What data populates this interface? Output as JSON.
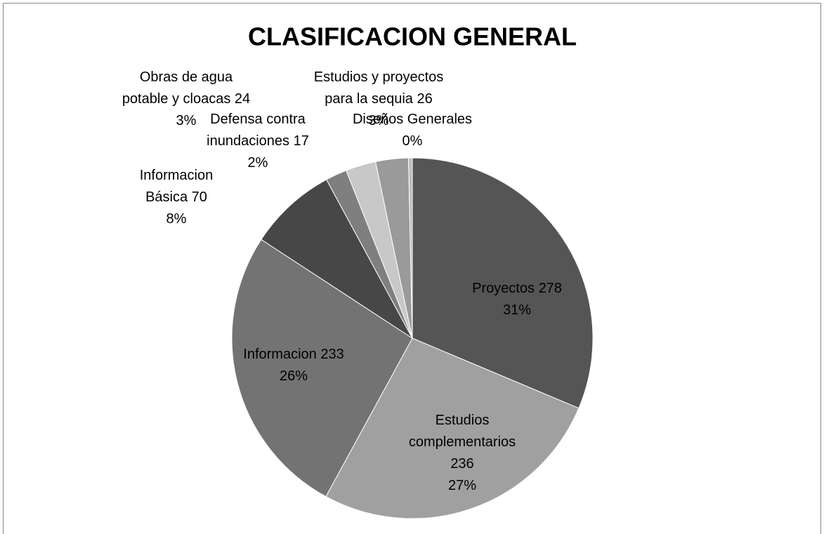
{
  "chart_data": {
    "type": "pie",
    "title": "CLASIFICACION GENERAL",
    "categories": [
      "Proyectos",
      "Estudios complementarios",
      "Informacion",
      "Informacion Básica",
      "Defensa contra inundaciones",
      "Obras de agua potable y cloacas",
      "Estudios y proyectos para la sequia",
      "Diseños Generales"
    ],
    "values": [
      278,
      236,
      233,
      70,
      17,
      24,
      26,
      3
    ],
    "percent_labels": [
      "31%",
      "27%",
      "26%",
      "8%",
      "2%",
      "3%",
      "3%",
      "0%"
    ],
    "printed_values": [
      true,
      true,
      true,
      true,
      true,
      true,
      true,
      false
    ],
    "colors": [
      "#555555",
      "#a0a0a0",
      "#737373",
      "#474747",
      "#7f7f7f",
      "#c8c8c8",
      "#9a9a9a",
      "#bdbdbd"
    ]
  }
}
